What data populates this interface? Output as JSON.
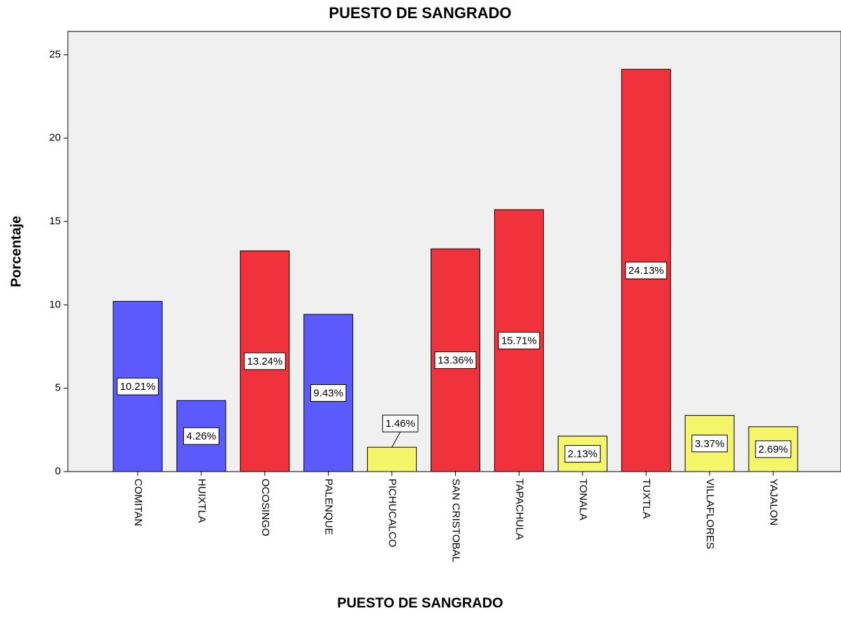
{
  "chart_data": {
    "type": "bar",
    "title": "PUESTO DE SANGRADO",
    "x_label": "PUESTO DE SANGRADO",
    "y_label": "Porcentaje",
    "categories": [
      "COMITAN",
      "HUIXTLA",
      "OCOSINGO",
      "PALENQUE",
      "PICHUCALCO",
      "SAN CRISTOBAL",
      "TAPACHULA",
      "TONALA",
      "TUXTLA",
      "VILLAFLORES",
      "YAJALON"
    ],
    "values": [
      10.21,
      4.26,
      13.24,
      9.43,
      1.46,
      13.36,
      15.71,
      2.13,
      24.13,
      3.37,
      2.69
    ],
    "value_labels": [
      "10.21%",
      "4.26%",
      "13.24%",
      "9.43%",
      "1.46%",
      "13.36%",
      "15.71%",
      "2.13%",
      "24.13%",
      "3.37%",
      "2.69%"
    ],
    "colors": [
      "#5a5aff",
      "#5a5aff",
      "#f0323c",
      "#5a5aff",
      "#f5f569",
      "#f0323c",
      "#f0323c",
      "#f5f569",
      "#f0323c",
      "#f5f569",
      "#f5f569"
    ],
    "ylim": [
      0,
      26.4
    ],
    "yticks": [
      0,
      5,
      10,
      15,
      20,
      25
    ],
    "grid": false
  }
}
